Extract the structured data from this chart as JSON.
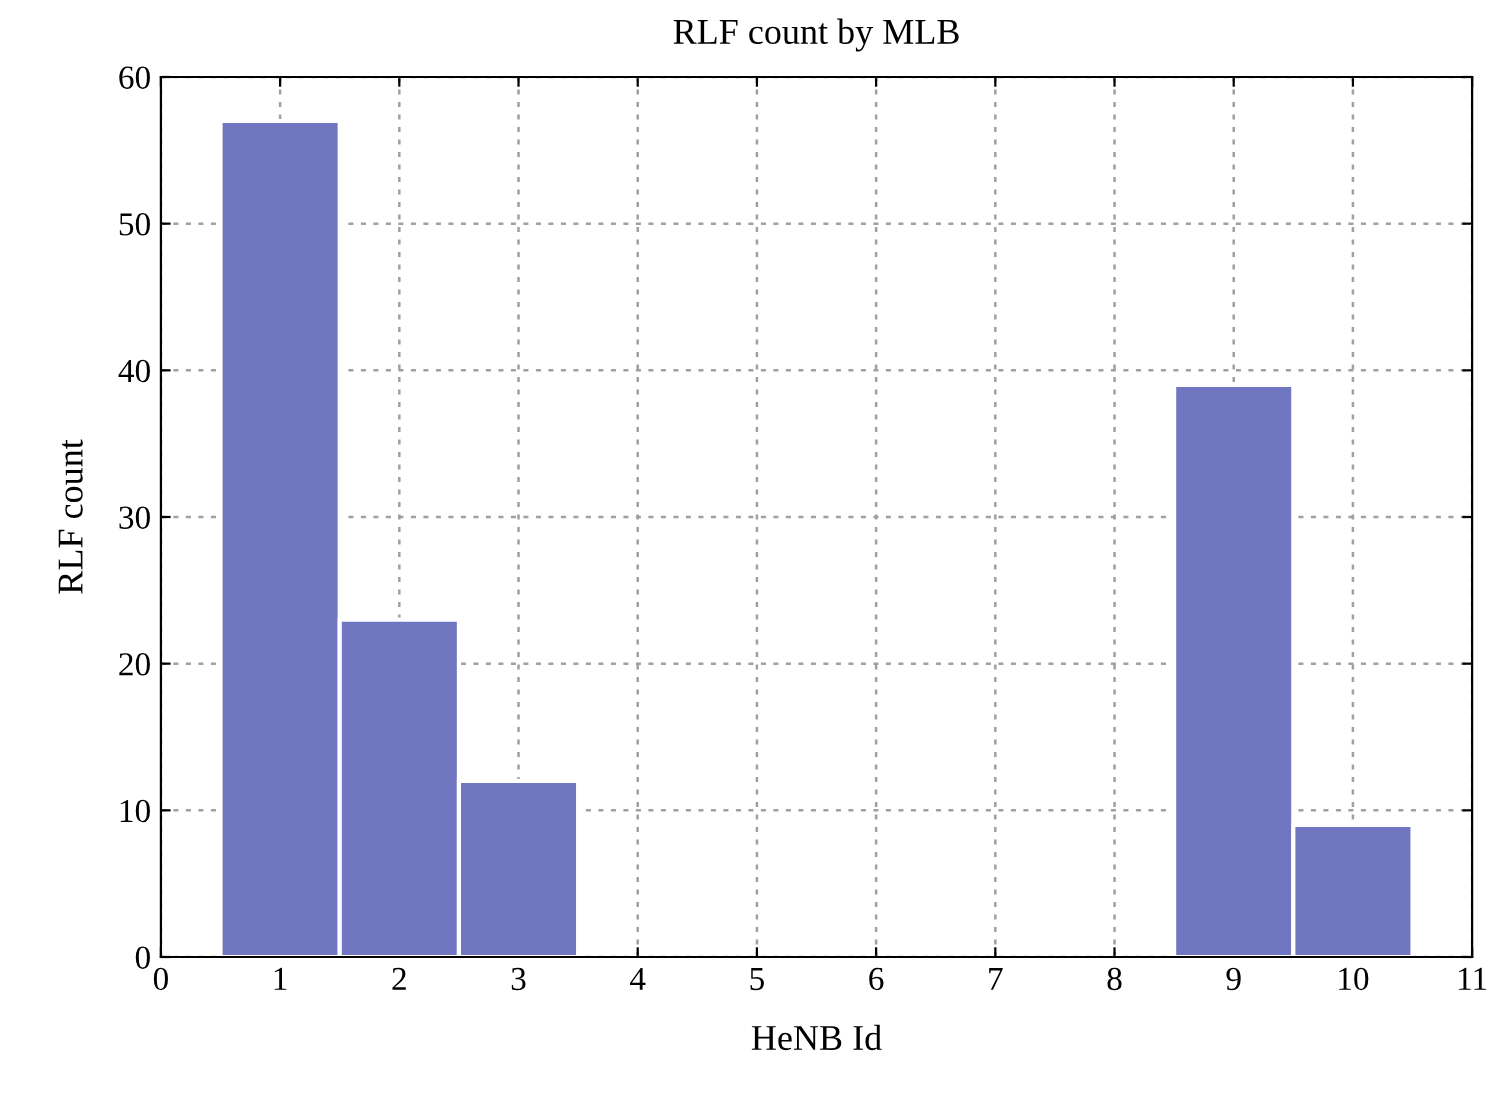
{
  "chart_data": {
    "type": "bar",
    "title": "RLF count by MLB",
    "xlabel": "HeNB Id",
    "ylabel": "RLF count",
    "x": [
      1,
      2,
      3,
      9,
      10
    ],
    "values": [
      57,
      23,
      12,
      39,
      9
    ],
    "color": "#7076c0",
    "xlim": [
      0,
      11
    ],
    "xticks": [
      0,
      1,
      2,
      3,
      4,
      5,
      6,
      7,
      8,
      9,
      10,
      11
    ],
    "ylim": [
      0,
      60
    ],
    "yticks": [
      0,
      10,
      20,
      30,
      40,
      50,
      60
    ],
    "grid": true
  }
}
